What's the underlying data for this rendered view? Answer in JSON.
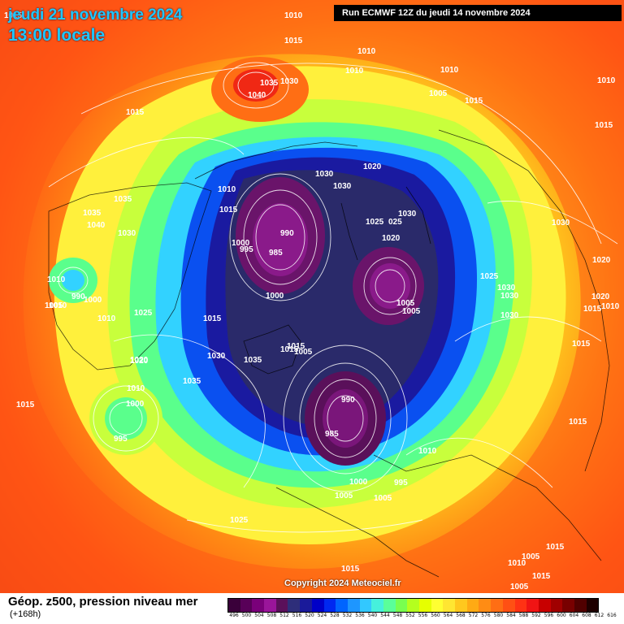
{
  "header": {
    "date": "jeudi 21 novembre 2024",
    "time": "13:00 locale",
    "run": "Run ECMWF 12Z du jeudi 14 novembre 2024"
  },
  "copyright": "Copyright 2024 Meteociel.fr",
  "footer": {
    "title": "Géop. z500, pression niveau mer",
    "subtitle": "(+168h)"
  },
  "legend": {
    "labels": [
      "496",
      "500",
      "504",
      "508",
      "512",
      "516",
      "520",
      "524",
      "528",
      "532",
      "536",
      "540",
      "544",
      "548",
      "552",
      "556",
      "560",
      "564",
      "568",
      "572",
      "576",
      "580",
      "584",
      "588",
      "592",
      "596",
      "600",
      "604",
      "608",
      "612",
      "616"
    ],
    "colors": [
      "#3a003a",
      "#580058",
      "#7a007a",
      "#9a159a",
      "#5a105a",
      "#2e2e7a",
      "#1a1a9a",
      "#0000c8",
      "#0028f0",
      "#0064ff",
      "#1e96ff",
      "#32c8ff",
      "#46f0dc",
      "#5aff9a",
      "#78ff50",
      "#b4ff1e",
      "#e6ff00",
      "#ffff32",
      "#ffe632",
      "#ffc81e",
      "#ffaa14",
      "#ff8c14",
      "#ff6e14",
      "#ff5014",
      "#ff3214",
      "#f01414",
      "#c80000",
      "#a00000",
      "#780000",
      "#500000",
      "#1e0000"
    ]
  },
  "pressure_labels": [
    "1015",
    "1010",
    "1015",
    "1010",
    "1010",
    "1035",
    "1030",
    "1040",
    "1015",
    "1005",
    "1015",
    "1010",
    "1010",
    "1015",
    "1020",
    "1030",
    "1030",
    "1025",
    "025",
    "1030",
    "1015",
    "1035",
    "1040",
    "1035",
    "1030",
    "1010",
    "1000",
    "995",
    "990",
    "985",
    "1020",
    "1030",
    "1025",
    "1030",
    "1030",
    "1010",
    "990",
    "1000",
    "1000",
    "1005",
    "1005",
    "1010",
    "1030",
    "1020",
    "1020",
    "1015",
    "1005",
    "1010",
    "1015",
    "1020",
    "1015",
    "1025",
    "1015",
    "1005",
    "1030",
    "1035",
    "1020",
    "1035",
    "1015",
    "1010",
    "995",
    "990",
    "985",
    "1000",
    "1005",
    "1005",
    "995",
    "1010",
    "1015",
    "1025",
    "1005",
    "1015",
    "1010",
    "1015",
    "1005",
    "1010",
    "1015",
    "1015",
    "1000"
  ]
}
